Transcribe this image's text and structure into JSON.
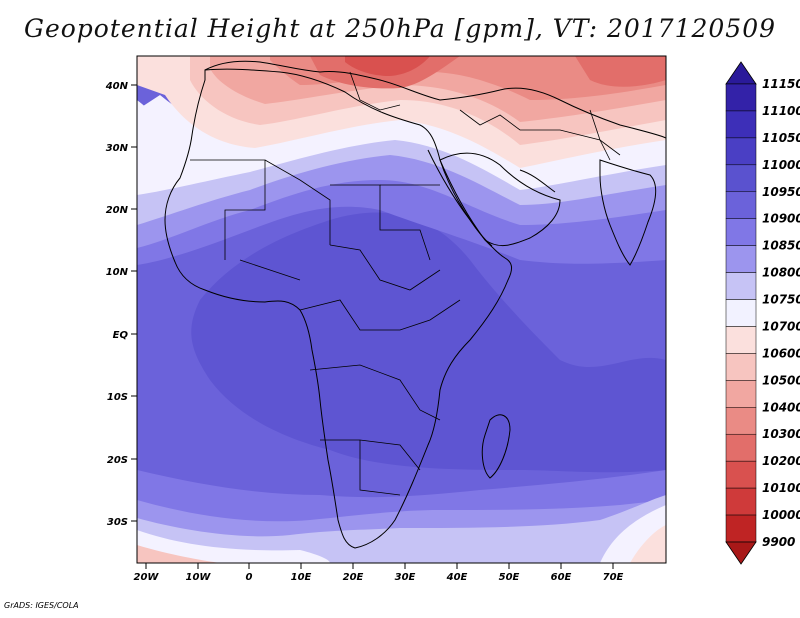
{
  "title": "Geopotential Height at 250hPa [gpm], VT: 2017120509",
  "credit": "GrADS: IGES/COLA",
  "map": {
    "lat_labels": [
      "40N",
      "30N",
      "20N",
      "10N",
      "EQ",
      "10S",
      "20S",
      "30S"
    ],
    "lon_labels": [
      "20W",
      "10W",
      "0",
      "10E",
      "20E",
      "30E",
      "40E",
      "50E",
      "60E",
      "70E"
    ]
  },
  "colorbar": {
    "levels": [
      "11150",
      "11100",
      "11050",
      "11000",
      "10950",
      "10900",
      "10850",
      "10800",
      "10750",
      "10700",
      "10600",
      "10500",
      "10400",
      "10300",
      "10200",
      "10100",
      "10000",
      "9900"
    ],
    "colors": [
      "#2a1a9a",
      "#3322a8",
      "#3d2fb8",
      "#4a3fc4",
      "#5a52cf",
      "#6b62da",
      "#8077e6",
      "#9c95ee",
      "#c6c3f5",
      "#f2f2ff",
      "#fbe0dd",
      "#f7c5c0",
      "#f1a7a1",
      "#ea8b85",
      "#e26e6a",
      "#d9514f",
      "#cf3a3a",
      "#bf2424",
      "#a81818"
    ]
  }
}
